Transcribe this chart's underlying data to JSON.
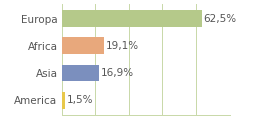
{
  "categories": [
    "Europa",
    "Africa",
    "Asia",
    "America"
  ],
  "values": [
    62.5,
    19.1,
    16.9,
    1.5
  ],
  "labels": [
    "62,5%",
    "19,1%",
    "16,9%",
    "1,5%"
  ],
  "bar_colors": [
    "#b5c98a",
    "#e8a87c",
    "#7b8fbe",
    "#e8c84a"
  ],
  "background_color": "#ffffff",
  "grid_color": "#c8d8a8",
  "xlim": [
    0,
    75
  ],
  "bar_height": 0.62,
  "label_fontsize": 7.5,
  "category_fontsize": 7.5,
  "text_color": "#555555",
  "xticks": [
    0,
    15,
    30,
    45,
    60,
    75
  ]
}
